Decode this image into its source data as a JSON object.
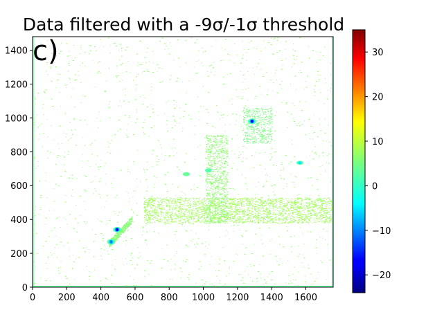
{
  "chart_data": {
    "type": "heatmap",
    "title": "Data filtered with a -9σ/-1σ threshold",
    "panel_label": "c)",
    "xlabel": "",
    "ylabel": "",
    "xlim": [
      0,
      1760
    ],
    "ylim": [
      0,
      1480
    ],
    "x_ticks": [
      0,
      200,
      400,
      600,
      800,
      1000,
      1200,
      1400,
      1600
    ],
    "y_ticks": [
      0,
      200,
      400,
      600,
      800,
      1000,
      1200,
      1400
    ],
    "colorbar": {
      "colormap": "jet",
      "range": [
        -24,
        35
      ],
      "ticks": [
        -20,
        -10,
        0,
        10,
        20,
        30
      ]
    },
    "background_color": "#ffffff",
    "features": [
      {
        "name": "scatter-background",
        "x_range": [
          0,
          1760
        ],
        "y_range": [
          0,
          1480
        ],
        "value": 6
      },
      {
        "name": "horizontal-band",
        "x_range": [
          650,
          1760
        ],
        "y_range": [
          380,
          530
        ],
        "value": 7
      },
      {
        "name": "vertical-band",
        "x_range": [
          1010,
          1140
        ],
        "y_range": [
          380,
          900
        ],
        "value": 7
      },
      {
        "name": "streak-upper",
        "x_range": [
          1230,
          1400
        ],
        "y_range": [
          850,
          1060
        ],
        "value": 6
      },
      {
        "name": "hotspot-upper",
        "x": 1285,
        "y": 980,
        "value": -18
      },
      {
        "name": "streak-lower",
        "x_range": [
          450,
          580
        ],
        "y_range": [
          250,
          410
        ],
        "value": 6
      },
      {
        "name": "hotspot-lower-a",
        "x": 460,
        "y": 268,
        "value": -12
      },
      {
        "name": "hotspot-lower-b",
        "x": 495,
        "y": 340,
        "value": -18
      },
      {
        "name": "hotspot-right",
        "x": 1565,
        "y": 735,
        "value": -6
      },
      {
        "name": "spot-mid-a",
        "x": 900,
        "y": 668,
        "value": 6
      },
      {
        "name": "spot-mid-b",
        "x": 1030,
        "y": 690,
        "value": 2
      }
    ]
  }
}
